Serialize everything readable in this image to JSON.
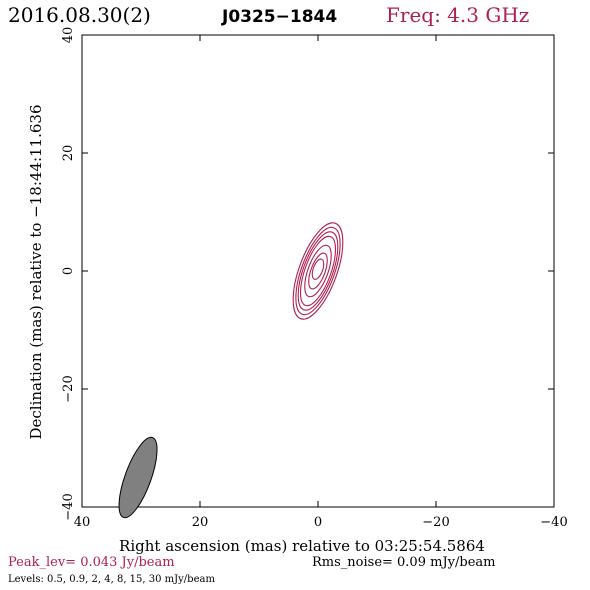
{
  "header": {
    "date": "2016.08.30(2)",
    "source": "J0325−1844",
    "freq": "Freq: 4.3 GHz"
  },
  "chart_data": {
    "type": "contour",
    "title": "J0325−1844",
    "xlabel": "Right ascension (mas) relative to 03:25:54.5864",
    "ylabel": "Declination (mas) relative to −18:44:11.636",
    "xlim": [
      40,
      -40
    ],
    "ylim": [
      -40,
      40
    ],
    "xticks": [
      40,
      20,
      0,
      -20,
      -40
    ],
    "yticks": [
      -40,
      -20,
      0,
      20,
      40
    ],
    "xtick_labels": [
      "40",
      "20",
      "0",
      "−20",
      "−40"
    ],
    "ytick_labels": [
      "−40",
      "−20",
      "0",
      "20",
      "40"
    ],
    "contour_levels_mJy": [
      0.5,
      0.9,
      2,
      4,
      8,
      15,
      30
    ],
    "contour_color": "#b0204e",
    "contours": [
      {
        "level": 0.5,
        "center": [
          0.0,
          0.0
        ],
        "semi_major": 8.6,
        "semi_minor": 3.2,
        "pa_deg": 20
      },
      {
        "level": 0.9,
        "center": [
          0.0,
          0.0
        ],
        "semi_major": 7.8,
        "semi_minor": 2.8,
        "pa_deg": 20
      },
      {
        "level": 2,
        "center": [
          0.0,
          0.0
        ],
        "semi_major": 7.0,
        "semi_minor": 2.5,
        "pa_deg": 20
      },
      {
        "level": 4,
        "center": [
          0.0,
          0.0
        ],
        "semi_major": 6.2,
        "semi_minor": 2.2,
        "pa_deg": 20
      },
      {
        "level": 8,
        "center": [
          0.0,
          0.0
        ],
        "semi_major": 4.6,
        "semi_minor": 1.7,
        "pa_deg": 20
      },
      {
        "level": 15,
        "center": [
          0.0,
          0.0
        ],
        "semi_major": 3.2,
        "semi_minor": 1.2,
        "pa_deg": 20
      },
      {
        "level": 30,
        "center": [
          0.0,
          0.3
        ],
        "semi_major": 1.8,
        "semi_minor": 0.8,
        "pa_deg": 20
      }
    ],
    "beam": {
      "center": [
        30.5,
        -35.0
      ],
      "major_mas": 7.2,
      "minor_mas": 2.2,
      "pa_deg": 20,
      "fill": "#808080"
    }
  },
  "footer": {
    "peak": "Peak_lev=  0.043 Jy/beam",
    "rms": "Rms_noise= 0.09 mJy/beam",
    "levels": "Levels: 0.5, 0.9,   2,   4,   8,  15,  30 mJy/beam"
  },
  "colors": {
    "accent": "#b0204e",
    "text": "#000000",
    "beam": "#808080"
  }
}
